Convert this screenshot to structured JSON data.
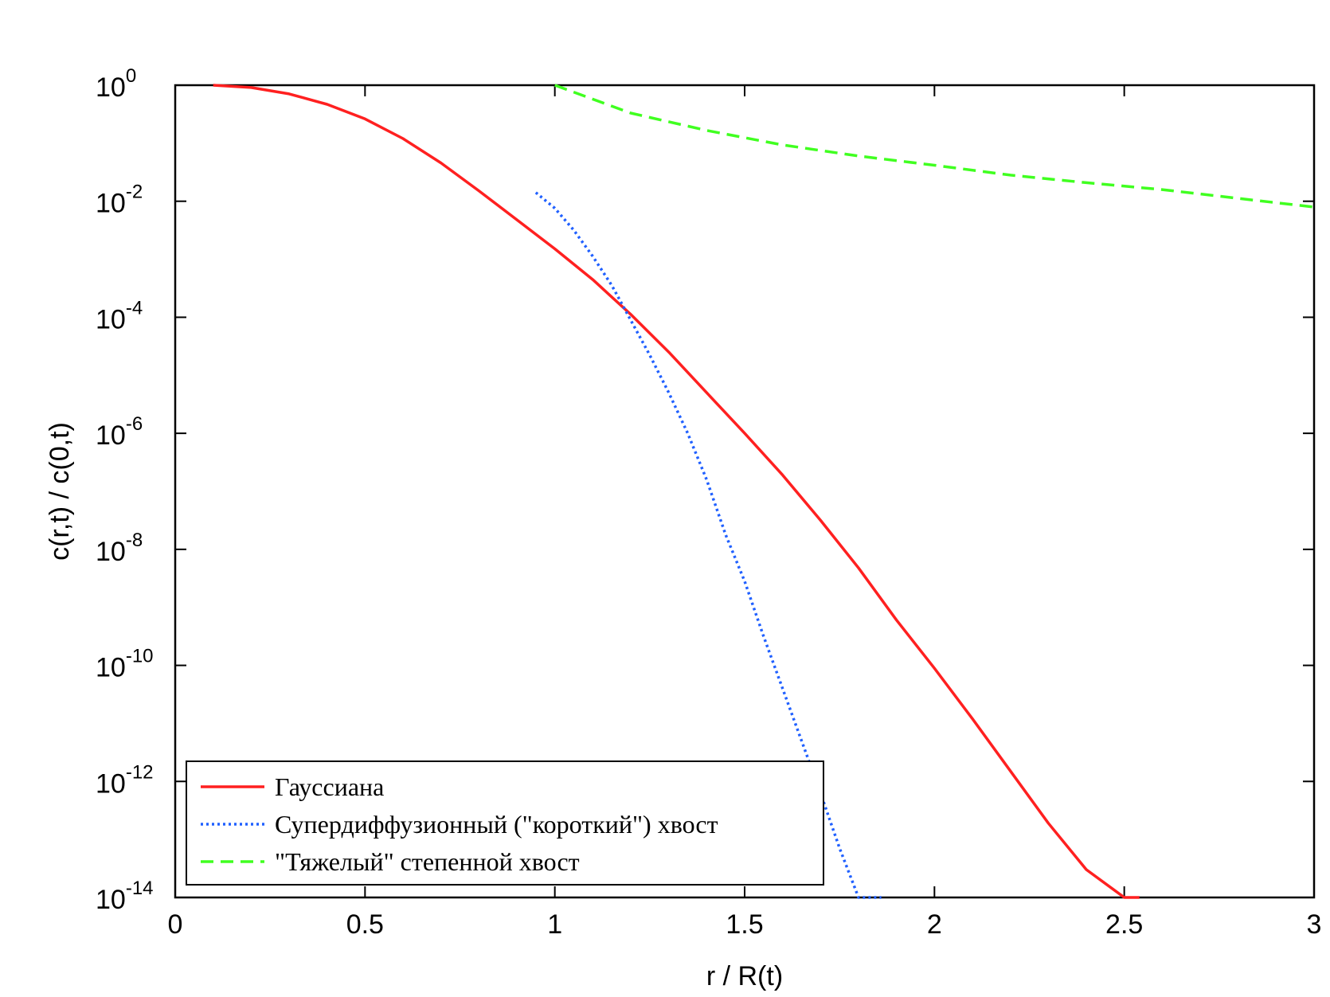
{
  "chart_data": {
    "type": "line",
    "title": "",
    "xlabel": "r / R(t)",
    "ylabel": "c(r,t) / c(0,t)",
    "xlim": [
      0,
      3
    ],
    "ylim_exponent": [
      -14,
      0
    ],
    "yscale": "log",
    "x_ticks": [
      {
        "value": 0,
        "label": "0"
      },
      {
        "value": 0.5,
        "label": "0.5"
      },
      {
        "value": 1,
        "label": "1"
      },
      {
        "value": 1.5,
        "label": "1.5"
      },
      {
        "value": 2,
        "label": "2"
      },
      {
        "value": 2.5,
        "label": "2.5"
      },
      {
        "value": 3,
        "label": "3"
      }
    ],
    "y_ticks": [
      {
        "exponent": 0,
        "base": "10",
        "exp_label": "0"
      },
      {
        "exponent": -2,
        "base": "10",
        "exp_label": "-2"
      },
      {
        "exponent": -4,
        "base": "10",
        "exp_label": "-4"
      },
      {
        "exponent": -6,
        "base": "10",
        "exp_label": "-6"
      },
      {
        "exponent": -8,
        "base": "10",
        "exp_label": "-8"
      },
      {
        "exponent": -10,
        "base": "10",
        "exp_label": "-10"
      },
      {
        "exponent": -12,
        "base": "10",
        "exp_label": "-12"
      },
      {
        "exponent": -14,
        "base": "10",
        "exp_label": "-14"
      }
    ],
    "grid": false,
    "legend_position": "bottom-left",
    "series": [
      {
        "name": "Гауссиана",
        "color": "#ff2020",
        "style": "solid",
        "x": [
          0.1,
          0.2,
          0.3,
          0.4,
          0.5,
          0.6,
          0.7,
          0.8,
          0.9,
          1.0,
          1.1,
          1.2,
          1.3,
          1.4,
          1.5,
          1.6,
          1.7,
          1.8,
          1.9,
          2.0,
          2.1,
          2.2,
          2.3,
          2.4,
          2.5,
          2.54
        ],
        "log10_y": [
          0,
          -0.04,
          -0.15,
          -0.33,
          -0.58,
          -0.92,
          -1.34,
          -1.82,
          -2.32,
          -2.82,
          -3.35,
          -3.95,
          -4.6,
          -5.3,
          -6.0,
          -6.72,
          -7.5,
          -8.32,
          -9.22,
          -10.05,
          -10.92,
          -11.82,
          -12.72,
          -13.52,
          -14.05,
          -14.0
        ]
      },
      {
        "name": "Супердиффузионный (\"короткий\") хвост",
        "color": "#2060ff",
        "style": "dotted",
        "x": [
          0.95,
          1.0,
          1.05,
          1.1,
          1.15,
          1.2,
          1.25,
          1.3,
          1.35,
          1.4,
          1.45,
          1.5,
          1.55,
          1.6,
          1.65,
          1.7,
          1.75,
          1.8,
          1.85,
          1.86
        ],
        "log10_y": [
          -1.85,
          -2.12,
          -2.5,
          -2.95,
          -3.45,
          -4.05,
          -4.65,
          -5.3,
          -6.0,
          -6.8,
          -7.75,
          -8.55,
          -9.5,
          -10.4,
          -11.3,
          -12.2,
          -13.15,
          -14.0,
          -14.0,
          -14.0
        ]
      },
      {
        "name": "\"Тяжелый\" степенной хвост",
        "color": "#40ff20",
        "style": "dashed",
        "x": [
          1.0,
          1.2,
          1.4,
          1.6,
          1.8,
          2.0,
          2.2,
          2.4,
          2.6,
          2.8,
          3.0
        ],
        "log10_y": [
          0,
          -0.48,
          -0.78,
          -1.03,
          -1.22,
          -1.38,
          -1.55,
          -1.68,
          -1.8,
          -1.95,
          -2.1
        ]
      }
    ]
  }
}
